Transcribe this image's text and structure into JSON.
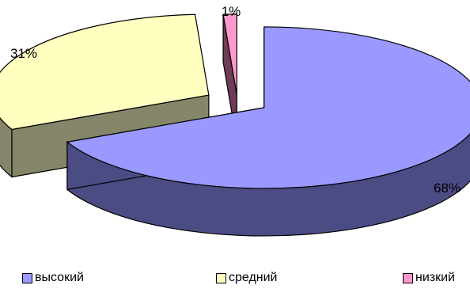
{
  "chart_data": {
    "type": "pie",
    "title": "",
    "style": "3d-exploded",
    "legend_position": "bottom",
    "categories": [
      "высокий",
      "средний",
      "низкий"
    ],
    "values": [
      68,
      31,
      1
    ],
    "labels": [
      "68%",
      "31%",
      "1%"
    ],
    "colors": {
      "top": [
        "#9999ff",
        "#ffffc0",
        "#ff99cc"
      ],
      "side": [
        "#4c4c85",
        "#85856a",
        "#6e3c56"
      ]
    }
  }
}
